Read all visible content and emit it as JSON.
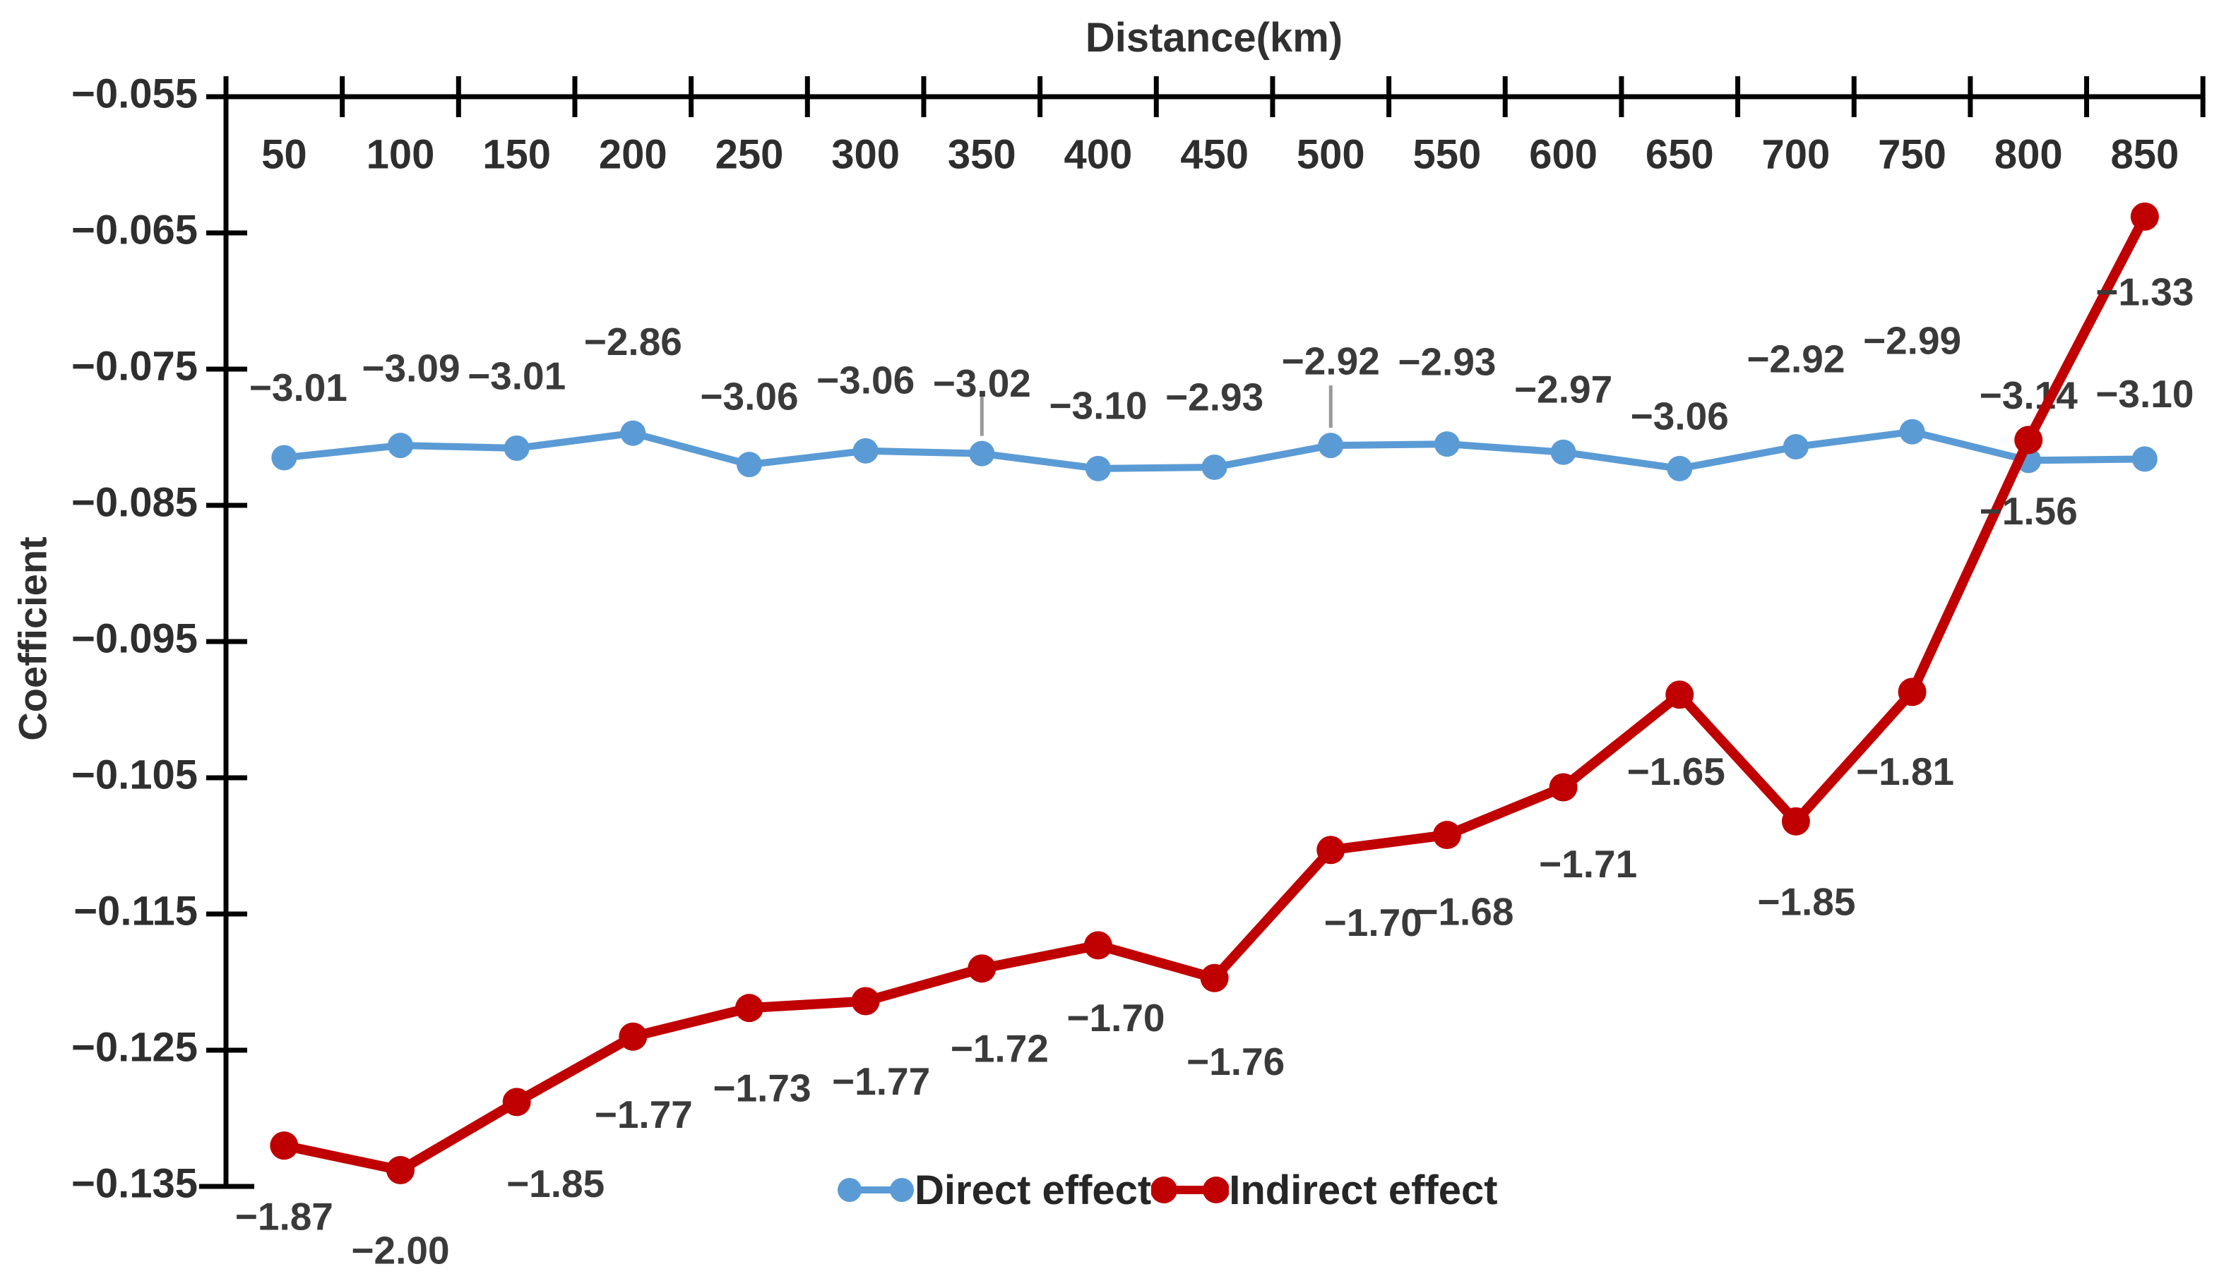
{
  "chart_data": {
    "type": "line",
    "title": "Distance(km)",
    "ylabel": "Coefficient",
    "x": [
      50,
      100,
      150,
      200,
      250,
      300,
      350,
      400,
      450,
      500,
      550,
      600,
      650,
      700,
      750,
      800,
      850
    ],
    "x_tick_labels": [
      "50",
      "100",
      "150",
      "200",
      "250",
      "300",
      "350",
      "400",
      "450",
      "500",
      "550",
      "600",
      "650",
      "700",
      "750",
      "800",
      "850"
    ],
    "y_tick_labels": [
      "−0.055",
      "−0.065",
      "−0.075",
      "−0.085",
      "−0.095",
      "−0.105",
      "−0.115",
      "−0.125",
      "−0.135"
    ],
    "y_axis": {
      "min": -0.135,
      "max": -0.055,
      "tick_step": 0.01,
      "position": "left"
    },
    "x_axis": {
      "position": "top",
      "title": "Distance(km)"
    },
    "grid": false,
    "legend_position": "bottom-center",
    "axis_color": "#000000",
    "tick_label_color": "#2e2e2e",
    "data_label_color": "#3a3a3a",
    "background_color": "#ffffff",
    "series": [
      {
        "name": "Direct effect",
        "color": "#5b9bd5",
        "values": [
          -0.0815,
          -0.0806,
          -0.0808,
          -0.0797,
          -0.082,
          -0.081,
          -0.0812,
          -0.0823,
          -0.0822,
          -0.0806,
          -0.0805,
          -0.0811,
          -0.0823,
          -0.0807,
          -0.0796,
          -0.0817,
          -0.0816
        ],
        "labels": [
          "−3.01",
          "−3.09",
          "−3.01",
          "−2.86",
          "−3.06",
          "−3.06",
          "−3.02",
          "−3.10",
          "−2.93",
          "−2.92",
          "−2.93",
          "−2.97",
          "−3.06",
          "−2.92",
          "−2.99",
          "−3.14",
          "−3.10"
        ],
        "label_position": "above",
        "label_dy": [
          -95,
          -105,
          -98,
          -125,
          -92,
          -96,
          -95,
          -85,
          -95,
          -115,
          -112,
          -85,
          -70,
          -120,
          -125,
          -88,
          -88
        ],
        "label_dx": [
          20,
          15,
          0,
          0,
          0,
          0,
          0,
          0,
          0,
          0,
          0,
          0,
          0,
          0,
          0,
          0,
          0
        ],
        "line_width": 10,
        "marker": "circle",
        "marker_radius": 18
      },
      {
        "name": "Indirect effect",
        "color": "#c00000",
        "values": [
          -0.132,
          -0.1338,
          -0.1288,
          -0.124,
          -0.1219,
          -0.1214,
          -0.119,
          -0.1173,
          -0.1197,
          -0.1103,
          -0.1092,
          -0.1057,
          -0.0989,
          -0.1082,
          -0.0987,
          -0.0802,
          -0.0638
        ],
        "labels": [
          "−1.87",
          "−2.00",
          "−1.85",
          "−1.77",
          "−1.73",
          "−1.77",
          "−1.72",
          "−1.70",
          "−1.76",
          "−1.70",
          "−1.68",
          "−1.71",
          "−1.65",
          "−1.85",
          "−1.81",
          "−1.56",
          "−1.33"
        ],
        "label_position": "below",
        "label_dy": [
          105,
          118,
          120,
          115,
          118,
          118,
          118,
          107,
          123,
          107,
          113,
          113,
          113,
          118,
          117,
          105,
          111
        ],
        "label_dx": [
          0,
          0,
          55,
          15,
          18,
          22,
          25,
          25,
          30,
          60,
          25,
          35,
          -5,
          15,
          -10,
          0,
          0
        ],
        "line_width": 14,
        "marker": "circle",
        "marker_radius": 20
      }
    ],
    "artifact_gray_ticks_at_x": [
      350,
      500
    ],
    "artifact_color": "#999999"
  }
}
